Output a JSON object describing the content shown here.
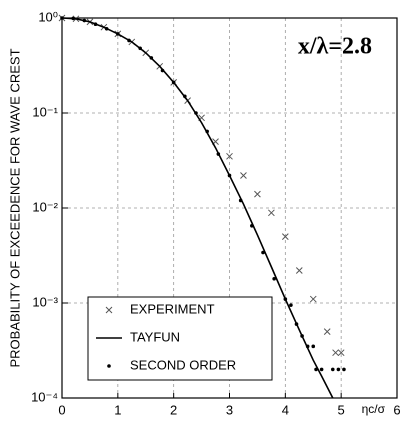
{
  "chart_data": {
    "type": "line",
    "annotation": "x/λ=2.8",
    "xlabel": "ηc/σ",
    "ylabel": "PROBABILITY OF EXCEEDENCE FOR WAVE CREST",
    "xlim": [
      0,
      6
    ],
    "xticks": [
      0,
      1,
      2,
      3,
      4,
      5,
      6
    ],
    "ylim": [
      0.0001,
      1
    ],
    "log_y": true,
    "grid": true,
    "yticks": [
      {
        "value": 0.0001,
        "label": "10⁻⁴"
      },
      {
        "value": 0.001,
        "label": "10⁻³"
      },
      {
        "value": 0.01,
        "label": "10⁻²"
      },
      {
        "value": 0.1,
        "label": "10⁻¹"
      },
      {
        "value": 1,
        "label": "10⁰"
      }
    ],
    "legend": "lower-left",
    "series": [
      {
        "name": "EXPERIMENT",
        "marker": "x",
        "color": "#555555",
        "x": [
          0,
          0.25,
          0.5,
          0.75,
          1,
          1.25,
          1.5,
          1.75,
          2,
          2.25,
          2.5,
          2.75,
          3,
          3.25,
          3.5,
          3.75,
          4,
          4.25,
          4.5,
          4.75,
          4.9,
          5.0
        ],
        "values": [
          1,
          0.98,
          0.91,
          0.8,
          0.68,
          0.56,
          0.43,
          0.31,
          0.21,
          0.135,
          0.089,
          0.05,
          0.035,
          0.022,
          0.014,
          0.0089,
          0.005,
          0.0022,
          0.0011,
          0.0005,
          0.0003,
          0.0003
        ]
      },
      {
        "name": "TAYFUN",
        "marker": "line",
        "color": "#000000",
        "x": [
          0,
          0.25,
          0.5,
          0.75,
          1,
          1.25,
          1.5,
          1.75,
          2,
          2.25,
          2.5,
          2.75,
          3,
          3.25,
          3.5,
          3.75,
          4,
          4.25,
          4.5,
          4.65,
          4.85
        ],
        "values": [
          1,
          0.98,
          0.91,
          0.8,
          0.68,
          0.56,
          0.43,
          0.31,
          0.21,
          0.135,
          0.079,
          0.043,
          0.022,
          0.011,
          0.0052,
          0.0024,
          0.0011,
          0.00052,
          0.00025,
          0.00017,
          0.0001
        ]
      },
      {
        "name": "SECOND ORDER",
        "marker": "dot",
        "color": "#000000",
        "x": [
          0,
          0.2,
          0.4,
          0.6,
          0.8,
          1,
          1.2,
          1.4,
          1.6,
          1.8,
          2,
          2.2,
          2.4,
          2.6,
          2.8,
          3,
          3.2,
          3.4,
          3.6,
          3.8,
          4,
          4.1,
          4.2,
          4.3,
          4.4,
          4.5,
          4.55,
          4.65,
          4.85,
          4.95,
          5.05
        ],
        "values": [
          1,
          0.99,
          0.94,
          0.86,
          0.77,
          0.68,
          0.58,
          0.48,
          0.38,
          0.28,
          0.21,
          0.15,
          0.1,
          0.064,
          0.037,
          0.022,
          0.012,
          0.0065,
          0.0034,
          0.0018,
          0.0011,
          0.00095,
          0.0006,
          0.00045,
          0.00035,
          0.00035,
          0.0002,
          0.0002,
          0.0002,
          0.0002,
          0.0002
        ]
      }
    ]
  }
}
